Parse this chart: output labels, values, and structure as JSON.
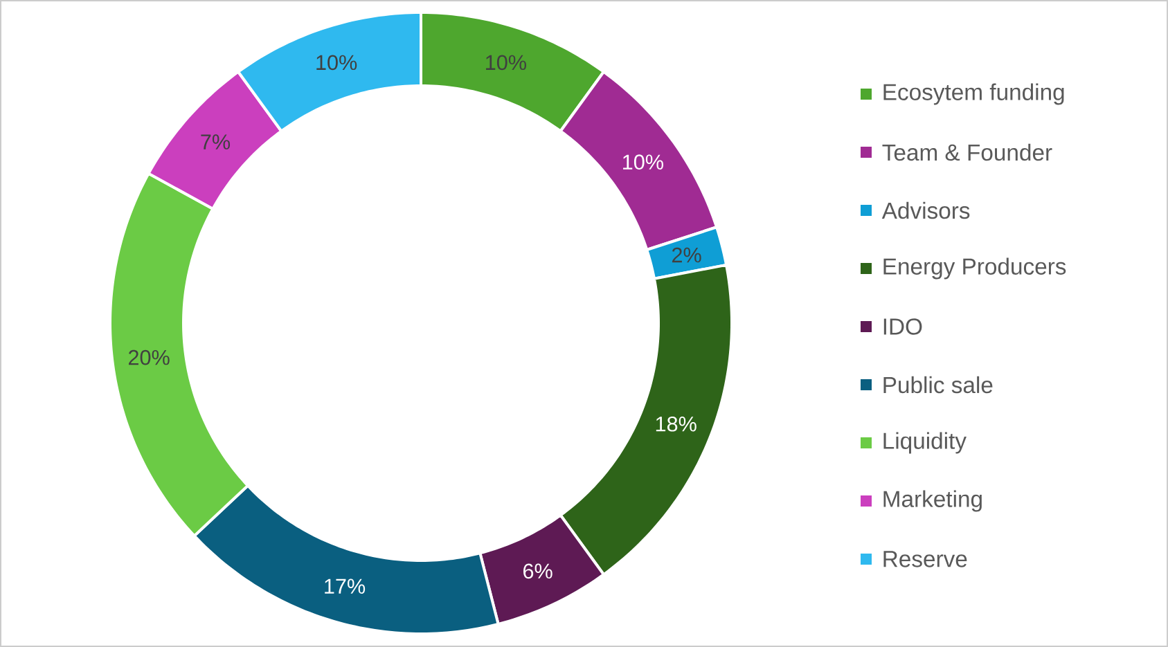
{
  "chart_data": {
    "type": "donut",
    "categories": [
      "Ecosytem funding",
      "Team & Founder",
      "Advisors",
      "Energy Producers",
      "IDO",
      "Public sale",
      "Liquidity",
      "Marketing",
      "Reserve"
    ],
    "values": [
      10,
      10,
      2,
      18,
      6,
      17,
      20,
      7,
      10
    ],
    "value_labels": [
      "10%",
      "10%",
      "2%",
      "18%",
      "6%",
      "17%",
      "20%",
      "7%",
      "10%"
    ],
    "colors": [
      "#4ea72e",
      "#a02b93",
      "#0f9ed5",
      "#2e6419",
      "#5e1a54",
      "#0a5f80",
      "#6bcb45",
      "#cb3fbe",
      "#2fb9ef"
    ],
    "legend": "right"
  }
}
